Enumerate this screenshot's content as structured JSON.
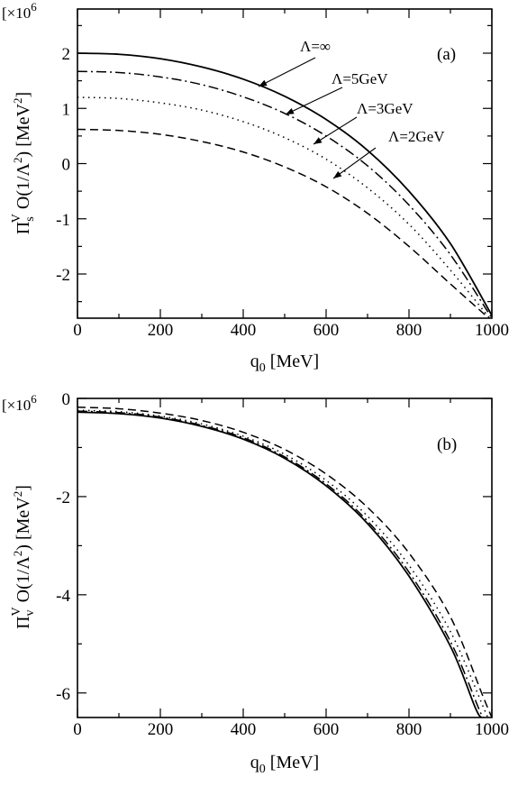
{
  "chart_data": [
    {
      "type": "line",
      "panel_label": "(a)",
      "scale_label": "[×10",
      "scale_exponent": "6",
      "ylabel": {
        "symbol": "Π",
        "sup": "V",
        "sub": "s",
        "rest": " O(1/Λ",
        "rest_sup": "2",
        "unit": ") [MeV",
        "unit_sup": "2",
        "end": "]"
      },
      "xlabel": {
        "main": "q",
        "sub": "0",
        "unit": " [MeV]"
      },
      "xlim": [
        0,
        1000
      ],
      "ylim": [
        -2.8,
        2.8
      ],
      "xticks": [
        0,
        200,
        400,
        600,
        800,
        1000
      ],
      "yticks": [
        -2,
        -1,
        0,
        1,
        2
      ],
      "xtick_labels": [
        "0",
        "200",
        "400",
        "600",
        "800",
        "1000"
      ],
      "ytick_labels": [
        "-2",
        "-1",
        "0",
        "1",
        "2"
      ],
      "grid": false,
      "series": [
        {
          "name": "Λ=∞",
          "style": "solid",
          "points": [
            [
              0,
              2.0
            ],
            [
              100,
              1.98
            ],
            [
              200,
              1.9
            ],
            [
              300,
              1.75
            ],
            [
              400,
              1.53
            ],
            [
              500,
              1.22
            ],
            [
              600,
              0.8
            ],
            [
              700,
              0.24
            ],
            [
              800,
              -0.5
            ],
            [
              900,
              -1.45
            ],
            [
              1000,
              -2.75
            ]
          ]
        },
        {
          "name": "Λ=5GeV",
          "style": "dashdot",
          "points": [
            [
              0,
              1.67
            ],
            [
              100,
              1.65
            ],
            [
              200,
              1.57
            ],
            [
              300,
              1.43
            ],
            [
              400,
              1.21
            ],
            [
              500,
              0.91
            ],
            [
              600,
              0.5
            ],
            [
              700,
              -0.04
            ],
            [
              800,
              -0.75
            ],
            [
              900,
              -1.65
            ],
            [
              1000,
              -2.8
            ]
          ]
        },
        {
          "name": "Λ=3GeV",
          "style": "dotted",
          "points": [
            [
              0,
              1.2
            ],
            [
              100,
              1.18
            ],
            [
              200,
              1.1
            ],
            [
              300,
              0.97
            ],
            [
              400,
              0.76
            ],
            [
              500,
              0.47
            ],
            [
              600,
              0.08
            ],
            [
              700,
              -0.44
            ],
            [
              800,
              -1.1
            ],
            [
              900,
              -1.93
            ],
            [
              1000,
              -2.85
            ]
          ]
        },
        {
          "name": "Λ=2GeV",
          "style": "dashed",
          "points": [
            [
              0,
              0.62
            ],
            [
              100,
              0.6
            ],
            [
              200,
              0.53
            ],
            [
              300,
              0.4
            ],
            [
              400,
              0.21
            ],
            [
              500,
              -0.06
            ],
            [
              600,
              -0.42
            ],
            [
              700,
              -0.9
            ],
            [
              800,
              -1.5
            ],
            [
              900,
              -2.18
            ],
            [
              1000,
              -2.85
            ]
          ]
        }
      ],
      "annotations": [
        {
          "text": "Λ=∞",
          "series": "Λ=∞"
        },
        {
          "text": "Λ=5GeV",
          "series": "Λ=5GeV"
        },
        {
          "text": "Λ=3GeV",
          "series": "Λ=3GeV"
        },
        {
          "text": "Λ=2GeV",
          "series": "Λ=2GeV"
        }
      ]
    },
    {
      "type": "line",
      "panel_label": "(b)",
      "scale_label": "[×10",
      "scale_exponent": "6",
      "ylabel": {
        "symbol": "Π",
        "sup": "V",
        "sub": "v",
        "rest": " O(1/Λ",
        "rest_sup": "2",
        "unit": ") [MeV",
        "unit_sup": "2",
        "end": "]"
      },
      "xlabel": {
        "main": "q",
        "sub": "0",
        "unit": " [MeV]"
      },
      "xlim": [
        0,
        1000
      ],
      "ylim": [
        -6.5,
        0
      ],
      "xticks": [
        0,
        200,
        400,
        600,
        800,
        1000
      ],
      "yticks": [
        -6,
        -4,
        -2,
        0
      ],
      "xtick_labels": [
        "0",
        "200",
        "400",
        "600",
        "800",
        "1000"
      ],
      "ytick_labels": [
        "-6",
        "-4",
        "-2",
        "0"
      ],
      "grid": false,
      "series": [
        {
          "name": "Λ=∞",
          "style": "solid",
          "points": [
            [
              0,
              -0.28
            ],
            [
              100,
              -0.31
            ],
            [
              200,
              -0.4
            ],
            [
              300,
              -0.57
            ],
            [
              400,
              -0.83
            ],
            [
              500,
              -1.22
            ],
            [
              600,
              -1.78
            ],
            [
              700,
              -2.55
            ],
            [
              800,
              -3.62
            ],
            [
              900,
              -5.05
            ],
            [
              960,
              -6.3
            ],
            [
              975,
              -6.5
            ]
          ]
        },
        {
          "name": "Λ=5GeV",
          "style": "dashdot",
          "points": [
            [
              0,
              -0.26
            ],
            [
              100,
              -0.29
            ],
            [
              200,
              -0.38
            ],
            [
              300,
              -0.55
            ],
            [
              400,
              -0.8
            ],
            [
              500,
              -1.19
            ],
            [
              600,
              -1.74
            ],
            [
              700,
              -2.5
            ],
            [
              800,
              -3.54
            ],
            [
              900,
              -4.95
            ],
            [
              970,
              -6.35
            ],
            [
              980,
              -6.5
            ]
          ]
        },
        {
          "name": "Λ=3GeV",
          "style": "dotted",
          "points": [
            [
              0,
              -0.24
            ],
            [
              100,
              -0.27
            ],
            [
              200,
              -0.36
            ],
            [
              300,
              -0.52
            ],
            [
              400,
              -0.77
            ],
            [
              500,
              -1.14
            ],
            [
              600,
              -1.67
            ],
            [
              700,
              -2.4
            ],
            [
              800,
              -3.4
            ],
            [
              900,
              -4.75
            ],
            [
              980,
              -6.3
            ],
            [
              990,
              -6.5
            ]
          ]
        },
        {
          "name": "Λ=2GeV",
          "style": "dashed",
          "points": [
            [
              0,
              -0.18
            ],
            [
              100,
              -0.21
            ],
            [
              200,
              -0.3
            ],
            [
              300,
              -0.45
            ],
            [
              400,
              -0.69
            ],
            [
              500,
              -1.04
            ],
            [
              600,
              -1.54
            ],
            [
              700,
              -2.22
            ],
            [
              800,
              -3.15
            ],
            [
              900,
              -4.45
            ],
            [
              980,
              -6.1
            ],
            [
              1000,
              -6.5
            ]
          ]
        }
      ],
      "annotations": []
    }
  ]
}
